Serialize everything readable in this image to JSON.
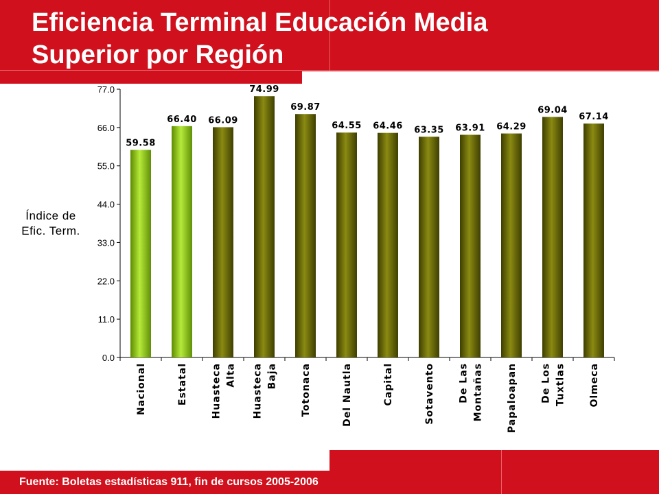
{
  "header": {
    "title": "Eficiencia Terminal Educación Media\nSuperior por Región"
  },
  "footer": {
    "source": "Fuente: Boletas estadísticas 911, fin de cursos 2005-2006"
  },
  "colors": {
    "brand_red": "#d0101c",
    "highlight_bar": "#8fc51a",
    "region_bar": "#6b6b08"
  },
  "chart_data": {
    "type": "bar",
    "ylabel": "Índice de\nEfic. Term.",
    "ylim": [
      0,
      77
    ],
    "yticks": [
      "0.0",
      "11.0",
      "22.0",
      "33.0",
      "44.0",
      "55.0",
      "66.0",
      "77.0"
    ],
    "grid": false,
    "legend": "none",
    "categories": [
      "Nacional",
      "Estatal",
      "Huasteca\nAlta",
      "Huasteca\nBaja",
      "Totonaca",
      "Del Nautla",
      "Capital",
      "Sotavento",
      "De Las\nMontañas",
      "Papaloapan",
      "De Los\nTuxtlas",
      "Olmeca"
    ],
    "values": [
      59.58,
      66.4,
      66.09,
      74.99,
      69.87,
      64.55,
      64.46,
      63.35,
      63.91,
      64.29,
      69.04,
      67.14
    ],
    "value_labels": [
      "59.58",
      "66.40",
      "66.09",
      "74.99",
      "69.87",
      "64.55",
      "64.46",
      "63.35",
      "63.91",
      "64.29",
      "69.04",
      "67.14"
    ],
    "highlighted": [
      true,
      true,
      false,
      false,
      false,
      false,
      false,
      false,
      false,
      false,
      false,
      false
    ]
  }
}
